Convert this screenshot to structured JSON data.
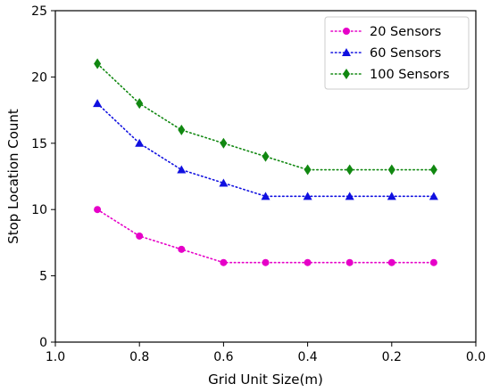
{
  "chart_data": {
    "type": "line",
    "xlabel": "Grid Unit Size(m)",
    "ylabel": "Stop Location Count",
    "xlim": [
      1.0,
      0.0
    ],
    "ylim": [
      0,
      25
    ],
    "x_reversed": true,
    "xticks": [
      "1.0",
      "0.8",
      "0.6",
      "0.4",
      "0.2",
      "0.0"
    ],
    "yticks": [
      "0",
      "5",
      "10",
      "15",
      "20",
      "25"
    ],
    "x": [
      0.9,
      0.8,
      0.7,
      0.6,
      0.5,
      0.4,
      0.3,
      0.2,
      0.1
    ],
    "series": [
      {
        "name": "20 Sensors",
        "marker": "circle",
        "color": "#e600c8",
        "values": [
          10,
          8,
          7,
          6,
          6,
          6,
          6,
          6,
          6
        ]
      },
      {
        "name": "60 Sensors",
        "marker": "triangle",
        "color": "#1010e0",
        "values": [
          18,
          15,
          13,
          12,
          11,
          11,
          11,
          11,
          11
        ]
      },
      {
        "name": "100 Sensors",
        "marker": "diamond",
        "color": "#118811",
        "values": [
          21,
          18,
          16,
          15,
          14,
          13,
          13,
          13,
          13
        ]
      }
    ],
    "line_style": "dotted",
    "grid": false,
    "legend_position": "top-right"
  }
}
